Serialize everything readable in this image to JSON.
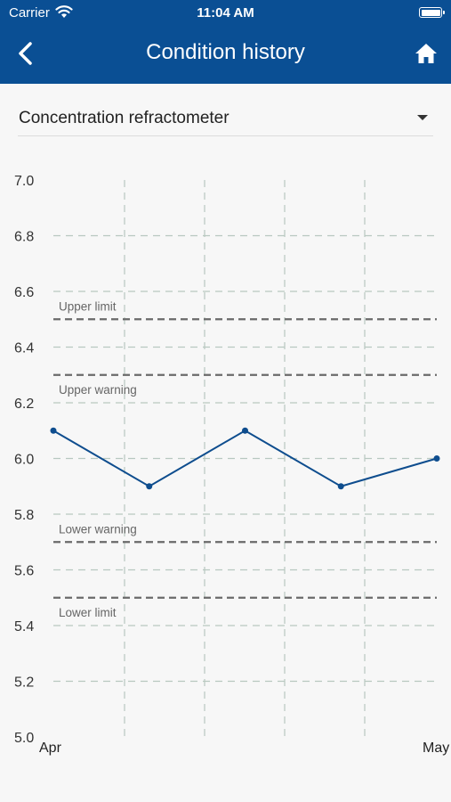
{
  "status_bar": {
    "carrier": "Carrier",
    "time": "11:04 AM"
  },
  "header": {
    "title": "Condition history"
  },
  "selector": {
    "value": "Concentration refractometer"
  },
  "colors": {
    "header_bg": "#0a4f94",
    "line": "#0e4d8e",
    "grid": "#b8c8c0",
    "threshold": "#6a6a6a"
  },
  "icons": {
    "back": "chevron-left-icon",
    "home": "home-icon",
    "dropdown": "caret-down-icon",
    "wifi": "wifi-icon",
    "battery": "battery-icon"
  },
  "chart_data": {
    "type": "line",
    "x_labels": [
      "Apr",
      "May"
    ],
    "ylim": [
      5.0,
      7.0
    ],
    "y_ticks": [
      "5.0",
      "5.2",
      "5.4",
      "5.6",
      "5.8",
      "6.0",
      "6.2",
      "6.4",
      "6.6",
      "6.8",
      "7.0"
    ],
    "grid": true,
    "series": [
      {
        "values": [
          6.1,
          5.9,
          6.1,
          5.9,
          6.0
        ]
      }
    ],
    "thresholds": [
      {
        "label": "Upper limit",
        "value": 6.5
      },
      {
        "label": "Upper warning",
        "value": 6.3
      },
      {
        "label": "Lower warning",
        "value": 5.7
      },
      {
        "label": "Lower limit",
        "value": 5.5
      }
    ]
  }
}
